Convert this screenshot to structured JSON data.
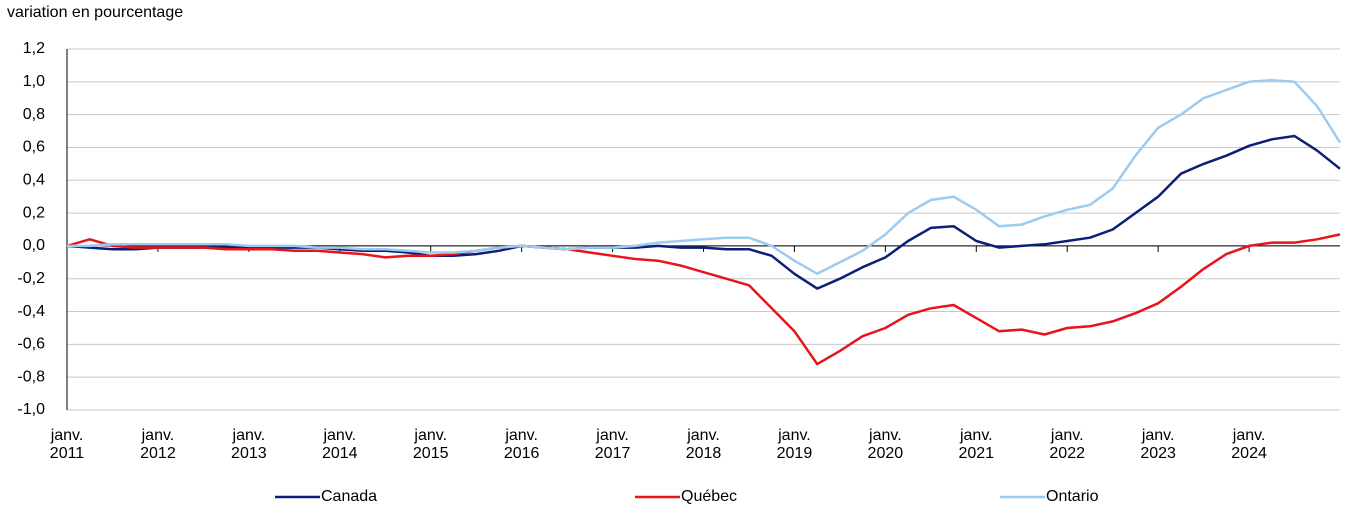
{
  "chart_data": {
    "type": "line",
    "y_label": "variation en pourcentage",
    "x": [
      2011,
      2011.25,
      2011.5,
      2011.75,
      2012,
      2012.25,
      2012.5,
      2012.75,
      2013,
      2013.25,
      2013.5,
      2013.75,
      2014,
      2014.25,
      2014.5,
      2014.75,
      2015,
      2015.25,
      2015.5,
      2015.75,
      2016,
      2016.25,
      2016.5,
      2016.75,
      2017,
      2017.25,
      2017.5,
      2017.75,
      2018,
      2018.25,
      2018.5,
      2018.75,
      2019,
      2019.25,
      2019.5,
      2019.75,
      2020,
      2020.25,
      2020.5,
      2020.75,
      2021,
      2021.25,
      2021.5,
      2021.75,
      2022,
      2022.25,
      2022.5,
      2022.75,
      2023,
      2023.25,
      2023.5,
      2023.75,
      2024,
      2024.25,
      2024.5,
      2024.75,
      2025
    ],
    "series": [
      {
        "name": "Canada",
        "color": "#0b1f78",
        "values": [
          0,
          -0.01,
          -0.02,
          -0.02,
          -0.01,
          -0.01,
          -0.01,
          -0.01,
          -0.01,
          -0.01,
          -0.01,
          -0.01,
          -0.02,
          -0.03,
          -0.03,
          -0.04,
          -0.06,
          -0.06,
          -0.05,
          -0.03,
          0.0,
          -0.01,
          -0.02,
          -0.01,
          -0.01,
          -0.01,
          0.0,
          -0.01,
          -0.01,
          -0.02,
          -0.02,
          -0.06,
          -0.17,
          -0.26,
          -0.2,
          -0.13,
          -0.07,
          0.03,
          0.11,
          0.12,
          0.03,
          -0.01,
          0.0,
          0.01,
          0.03,
          0.05,
          0.1,
          0.2,
          0.3,
          0.44,
          0.5,
          0.55,
          0.61,
          0.65,
          0.67,
          0.58,
          0.47
        ]
      },
      {
        "name": "Québec",
        "color": "#e8141c",
        "values": [
          0,
          0.04,
          0.0,
          -0.01,
          -0.01,
          -0.01,
          -0.01,
          -0.02,
          -0.02,
          -0.02,
          -0.03,
          -0.03,
          -0.04,
          -0.05,
          -0.07,
          -0.06,
          -0.06,
          -0.05,
          -0.03,
          -0.01,
          0.0,
          -0.01,
          -0.02,
          -0.04,
          -0.06,
          -0.08,
          -0.09,
          -0.12,
          -0.16,
          -0.2,
          -0.24,
          -0.38,
          -0.52,
          -0.72,
          -0.64,
          -0.55,
          -0.5,
          -0.42,
          -0.38,
          -0.36,
          -0.44,
          -0.52,
          -0.51,
          -0.54,
          -0.5,
          -0.49,
          -0.46,
          -0.41,
          -0.35,
          -0.25,
          -0.14,
          -0.05,
          0.0,
          0.02,
          0.02,
          0.04,
          0.07
        ]
      },
      {
        "name": "Ontario",
        "color": "#9ccbf0",
        "values": [
          0,
          0.0,
          0.01,
          0.01,
          0.01,
          0.01,
          0.01,
          0.01,
          0.0,
          0.0,
          0.0,
          -0.01,
          -0.01,
          -0.02,
          -0.02,
          -0.03,
          -0.04,
          -0.04,
          -0.03,
          -0.01,
          0.0,
          -0.01,
          -0.02,
          -0.01,
          -0.01,
          0.0,
          0.02,
          0.03,
          0.04,
          0.05,
          0.05,
          0.0,
          -0.09,
          -0.17,
          -0.1,
          -0.03,
          0.07,
          0.2,
          0.28,
          0.3,
          0.22,
          0.12,
          0.13,
          0.18,
          0.22,
          0.25,
          0.35,
          0.55,
          0.72,
          0.8,
          0.9,
          0.95,
          1.0,
          1.01,
          1.0,
          0.85,
          0.63
        ]
      }
    ],
    "xlim": [
      2011,
      2025
    ],
    "xticks": [
      {
        "value": 2011,
        "label": "janv. 2011"
      },
      {
        "value": 2012,
        "label": "janv. 2012"
      },
      {
        "value": 2013,
        "label": "janv. 2013"
      },
      {
        "value": 2014,
        "label": "janv. 2014"
      },
      {
        "value": 2015,
        "label": "janv. 2015"
      },
      {
        "value": 2016,
        "label": "janv. 2016"
      },
      {
        "value": 2017,
        "label": "janv. 2017"
      },
      {
        "value": 2018,
        "label": "janv. 2018"
      },
      {
        "value": 2019,
        "label": "janv. 2019"
      },
      {
        "value": 2020,
        "label": "janv. 2020"
      },
      {
        "value": 2021,
        "label": "janv. 2021"
      },
      {
        "value": 2022,
        "label": "janv. 2022"
      },
      {
        "value": 2023,
        "label": "janv. 2023"
      },
      {
        "value": 2024,
        "label": "janv. 2024"
      }
    ],
    "ylim": [
      -1.0,
      1.2
    ],
    "yticks": [
      {
        "value": -1.0,
        "label": "-1,0"
      },
      {
        "value": -0.8,
        "label": "-0,8"
      },
      {
        "value": -0.6,
        "label": "-0,6"
      },
      {
        "value": -0.4,
        "label": "-0,4"
      },
      {
        "value": -0.2,
        "label": "-0,2"
      },
      {
        "value": 0,
        "label": "0,0"
      },
      {
        "value": 0.2,
        "label": "0,2"
      },
      {
        "value": 0.4,
        "label": "0,4"
      },
      {
        "value": 0.6,
        "label": "0,6"
      },
      {
        "value": 0.8,
        "label": "0,8"
      },
      {
        "value": 1.0,
        "label": "1,0"
      },
      {
        "value": 1.2,
        "label": "1,2"
      }
    ],
    "grid": true,
    "legend": "bottom"
  }
}
